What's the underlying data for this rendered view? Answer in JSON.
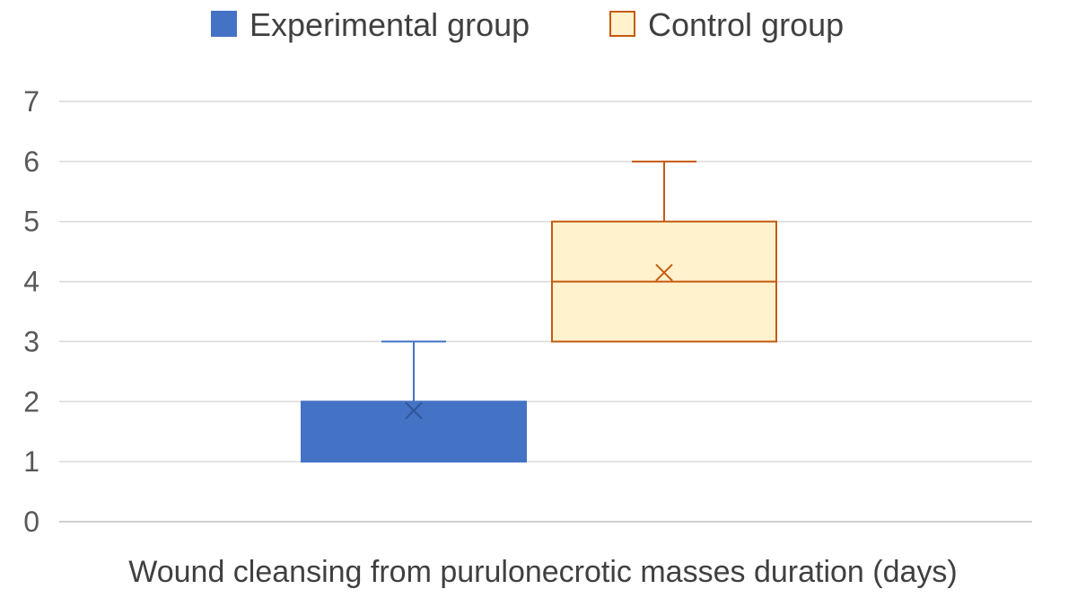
{
  "chart_data": {
    "type": "box",
    "title": "",
    "xlabel": "Wound cleansing from purulonecrotic masses duration (days)",
    "ylabel": "",
    "ylim": [
      0,
      7
    ],
    "yticks": [
      0,
      1,
      2,
      3,
      4,
      5,
      6,
      7
    ],
    "grid": true,
    "legend_position": "top",
    "series": [
      {
        "name": "Experimental group",
        "color": "#4472C4",
        "fill": "#4472C4",
        "min": 1,
        "q1": 1,
        "median": 2,
        "q3": 2,
        "max": 3,
        "mean": 1.85
      },
      {
        "name": "Control group",
        "color": "#C55A11",
        "fill": "#FFF2CC",
        "min": 3,
        "q1": 3,
        "median": 4,
        "q3": 5,
        "max": 6,
        "mean": 4.15
      }
    ]
  }
}
